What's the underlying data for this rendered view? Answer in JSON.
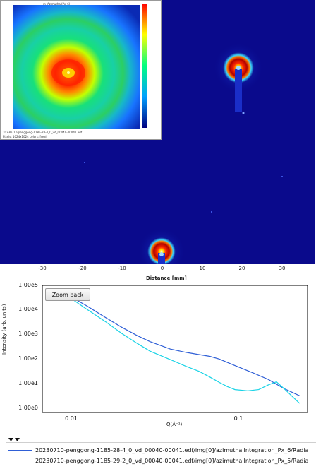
{
  "detector": {
    "x_axis": {
      "ticks": [
        "-30",
        "-20",
        "-10",
        "0",
        "10",
        "20",
        "30"
      ],
      "label": "Distance [mm]"
    }
  },
  "inset": {
    "title": "m_Azimuthal(Px_6)",
    "file": "20230710-penggong-1185-28-4_0_vd_00040-00041.edf",
    "status": "Pixels: 1024x1024   colors: [real]"
  },
  "plot": {
    "zoom_back_label": "Zoom back",
    "y_label": "Intensity (arb. units)",
    "x_label": "Q(Å⁻¹)",
    "y_ticks": [
      "1.00e5",
      "1.00e4",
      "1.00e3",
      "1.00e2",
      "1.00e1",
      "1.00e0"
    ],
    "x_ticks": [
      "0.01",
      "0.1"
    ]
  },
  "chart_data": {
    "type": "line",
    "xlabel": "Q(Å⁻¹)",
    "ylabel": "Intensity (arb. units)",
    "x_scale": "log",
    "y_scale": "log",
    "xlim": [
      0.0065,
      0.28
    ],
    "ylim": [
      0.5,
      100000
    ],
    "series": [
      {
        "name": "20230710-penggong-1185-28-4_0_vd_00040-00041.edf/img[0]/azimuthalIntegration_Px_6/Radia",
        "color": "#2f5fd6",
        "x": [
          0.009,
          0.012,
          0.016,
          0.02,
          0.025,
          0.03,
          0.04,
          0.05,
          0.06,
          0.07,
          0.08,
          0.1,
          0.13,
          0.16,
          0.2,
          0.25
        ],
        "y": [
          45000,
          15000,
          4500,
          1800,
          800,
          450,
          220,
          160,
          130,
          110,
          85,
          45,
          22,
          12,
          5,
          2.5
        ]
      },
      {
        "name": "20230710-penggong-1185-29-2_0_vd_00040-00041.edf/img[0]/azimuthalIntegration_Px_5/Radia",
        "color": "#19d3e6",
        "x": [
          0.009,
          0.012,
          0.016,
          0.02,
          0.025,
          0.03,
          0.04,
          0.05,
          0.06,
          0.07,
          0.08,
          0.09,
          0.1,
          0.12,
          0.14,
          0.16,
          0.18,
          0.2,
          0.25
        ],
        "y": [
          42000,
          11000,
          3000,
          1000,
          380,
          180,
          80,
          42,
          26,
          15,
          9,
          6,
          4.5,
          4,
          4.5,
          7,
          9.5,
          5,
          1.2
        ]
      }
    ]
  },
  "legend": {
    "entries": [
      {
        "label": "20230710-penggong-1185-28-4_0_vd_00040-00041.edf/img[0]/azimuthalIntegration_Px_6/Radia",
        "color": "#2f5fd6"
      },
      {
        "label": "20230710-penggong-1185-29-2_0_vd_00040-00041.edf/img[0]/azimuthalIntegration_Px_5/Radia",
        "color": "#19d3e6"
      }
    ]
  }
}
